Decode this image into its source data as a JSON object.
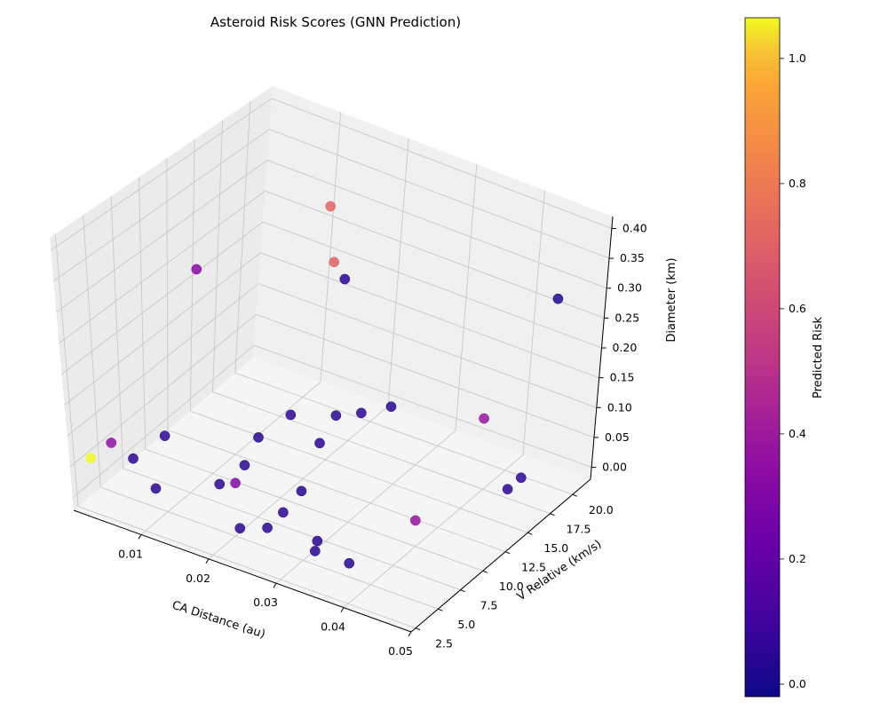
{
  "chart_data": {
    "type": "scatter3d",
    "title": "Asteroid Risk Scores (GNN Prediction)",
    "xlabel": "CA Distance (au)",
    "ylabel": "V Relative (km/s)",
    "zlabel": "Diameter (km)",
    "colorbar_label": "Predicted Risk",
    "colormap": "plasma",
    "xlim": [
      0.0,
      0.05
    ],
    "ylim": [
      2.0,
      22.0
    ],
    "zlim": [
      -0.02,
      0.42
    ],
    "clim": [
      -0.02,
      1.065
    ],
    "x_ticks": [
      "0.01",
      "0.02",
      "0.03",
      "0.04",
      "0.05"
    ],
    "y_ticks": [
      "2.5",
      "5.0",
      "7.5",
      "10.0",
      "12.5",
      "15.0",
      "17.5",
      "20.0"
    ],
    "z_ticks": [
      "0.00",
      "0.05",
      "0.10",
      "0.15",
      "0.20",
      "0.25",
      "0.30",
      "0.35",
      "0.40"
    ],
    "colorbar_ticks": [
      "0.0",
      "0.2",
      "0.4",
      "0.6",
      "0.8",
      "1.0"
    ],
    "grid": true,
    "points": [
      {
        "x": 0.013,
        "y": 19.5,
        "z": 0.31,
        "risk": 0.72
      },
      {
        "x": 0.016,
        "y": 18.0,
        "z": 0.25,
        "risk": 0.7
      },
      {
        "x": 0.017,
        "y": 18.5,
        "z": 0.22,
        "risk": 0.05
      },
      {
        "x": 0.002,
        "y": 14.0,
        "z": 0.23,
        "risk": 0.33
      },
      {
        "x": 0.045,
        "y": 20.5,
        "z": 0.28,
        "risk": 0.03
      },
      {
        "x": 0.002,
        "y": 5.0,
        "z": 0.06,
        "risk": 0.36
      },
      {
        "x": 0.001,
        "y": 3.5,
        "z": 0.05,
        "risk": 1.0
      },
      {
        "x": 0.005,
        "y": 8.5,
        "z": 0.04,
        "risk": 0.05
      },
      {
        "x": 0.003,
        "y": 6.5,
        "z": 0.02,
        "risk": 0.05
      },
      {
        "x": 0.014,
        "y": 12.0,
        "z": 0.03,
        "risk": 0.04
      },
      {
        "x": 0.016,
        "y": 14.0,
        "z": 0.05,
        "risk": 0.05
      },
      {
        "x": 0.02,
        "y": 16.0,
        "z": 0.04,
        "risk": 0.04
      },
      {
        "x": 0.023,
        "y": 16.5,
        "z": 0.05,
        "risk": 0.05
      },
      {
        "x": 0.026,
        "y": 17.5,
        "z": 0.06,
        "risk": 0.04
      },
      {
        "x": 0.021,
        "y": 13.5,
        "z": 0.03,
        "risk": 0.05
      },
      {
        "x": 0.009,
        "y": 4.5,
        "z": 0.02,
        "risk": 0.04
      },
      {
        "x": 0.016,
        "y": 9.0,
        "z": 0.03,
        "risk": 0.04
      },
      {
        "x": 0.015,
        "y": 7.0,
        "z": 0.02,
        "risk": 0.05
      },
      {
        "x": 0.018,
        "y": 6.5,
        "z": 0.04,
        "risk": 0.31
      },
      {
        "x": 0.025,
        "y": 8.5,
        "z": 0.03,
        "risk": 0.04
      },
      {
        "x": 0.025,
        "y": 6.5,
        "z": 0.02,
        "risk": 0.05
      },
      {
        "x": 0.037,
        "y": 19.5,
        "z": 0.06,
        "risk": 0.38
      },
      {
        "x": 0.046,
        "y": 17.0,
        "z": 0.03,
        "risk": 0.05
      },
      {
        "x": 0.046,
        "y": 15.5,
        "z": 0.03,
        "risk": 0.05
      },
      {
        "x": 0.041,
        "y": 9.0,
        "z": 0.04,
        "risk": 0.37
      },
      {
        "x": 0.032,
        "y": 5.0,
        "z": 0.02,
        "risk": 0.04
      },
      {
        "x": 0.026,
        "y": 4.0,
        "z": 0.03,
        "risk": 0.04
      },
      {
        "x": 0.024,
        "y": 2.5,
        "z": 0.04,
        "risk": 0.04
      },
      {
        "x": 0.033,
        "y": 4.0,
        "z": 0.02,
        "risk": 0.05
      },
      {
        "x": 0.038,
        "y": 4.0,
        "z": 0.02,
        "risk": 0.04
      }
    ]
  }
}
